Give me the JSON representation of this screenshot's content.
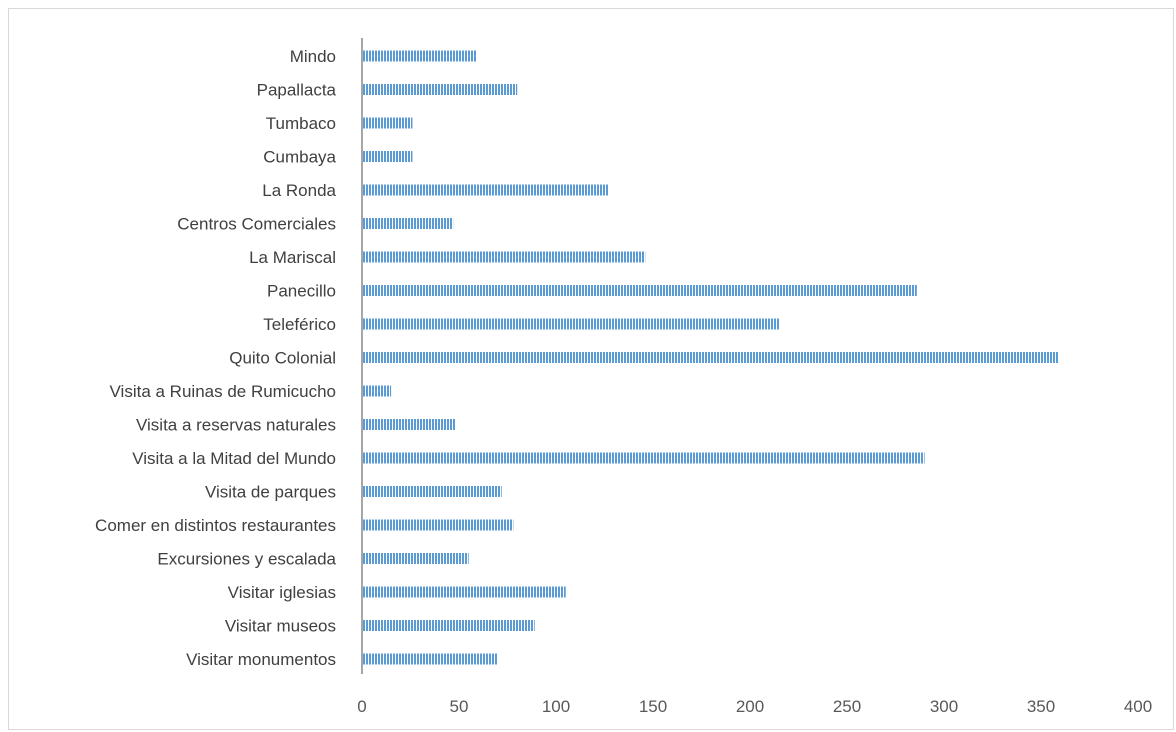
{
  "chart_data": {
    "type": "bar",
    "orientation": "horizontal",
    "title": "",
    "xlabel": "",
    "ylabel": "",
    "categories": [
      "Mindo",
      "Papallacta",
      "Tumbaco",
      "Cumbaya",
      "La Ronda",
      "Centros Comerciales",
      "La Mariscal",
      "Panecillo",
      "Teleférico",
      "Quito Colonial",
      "Visita a Ruinas de Rumicucho",
      "Visita a reservas naturales",
      "Visita a la Mitad del Mundo",
      "Visita de parques",
      "Comer en distintos restaurantes",
      "Excursiones y escalada",
      "Visitar iglesias",
      "Visitar museos",
      "Visitar monumentos"
    ],
    "values": [
      59,
      80,
      26,
      26,
      127,
      47,
      146,
      286,
      215,
      359,
      15,
      48,
      290,
      72,
      78,
      55,
      105,
      89,
      70
    ],
    "xlim": [
      0,
      400
    ],
    "x_ticks": [
      "0",
      "50",
      "100",
      "150",
      "200",
      "250",
      "300",
      "350",
      "400"
    ],
    "grid": false,
    "legend": "none",
    "bar_color": "#5b9bd5",
    "bar_pattern": "vertical-stripes"
  }
}
